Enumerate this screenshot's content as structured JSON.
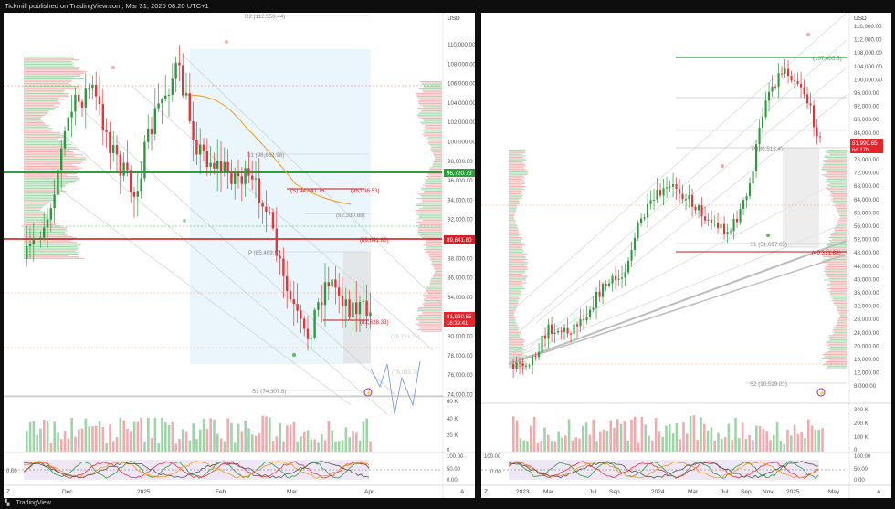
{
  "header": {
    "attribution": "Tickmill published on TradingView.com, Mar 31, 2025 08:20 UTC+1"
  },
  "footer": {
    "brand": "TradingView"
  },
  "colors": {
    "up": "#2e9a3e",
    "down": "#e8333a",
    "volume_up": "#9fd3a8",
    "volume_down": "#f4a9ae",
    "profile_up": "#a8dbb0",
    "profile_down": "#f6b3b6",
    "line_green": "#2f9e3f",
    "line_red": "#d42027",
    "fib": "#b0b0b0",
    "ma": "#f29b1d",
    "price_tag": "#e8232a",
    "green_tag": "#2f9e3f"
  },
  "left": {
    "currency": "USD",
    "price_axis": [
      "110,000.00",
      "108,000.00",
      "106,000.00",
      "104,000.00",
      "102,000.00",
      "100,000.00",
      "98,000.00",
      "96,000.00",
      "94,000.00",
      "92,000.00",
      "90,000.00",
      "88,000.00",
      "86,000.00",
      "84,000.00",
      "82,000.00",
      "80,000.00",
      "78,000.00",
      "76,000.00",
      "74,000.00"
    ],
    "time_axis": [
      "Dec",
      "2025",
      "Feb",
      "Mar",
      "Apr"
    ],
    "tag_green": "96,720.73",
    "tag_red_level": "89,641.80",
    "tag_price": "81,990.65",
    "tag_countdown": "16:39:41",
    "pivot_labels": {
      "r2": "R2 (112,556.44)",
      "r1": "R1 (98,633.98)",
      "p": "P (85,469.9)",
      "s1": "S1 (74,307.6)",
      "lvl_9504": "(S) 94,541.75",
      "lvl_95036": "(95,036.53)",
      "lvl_92330": "(92,330.88)",
      "lvl_89641": "(89,641.80)",
      "lvl_81628": "(81,628.33)",
      "lvl_79723": "(79,723.25)",
      "lvl_76093": "(76,093.7)"
    },
    "volume_axis": [
      "60 K",
      "40 K",
      "20 K",
      "0"
    ],
    "osc_axis": [
      "100.00",
      "50.00",
      "0.00"
    ],
    "osc_left_value": "0.00",
    "axis_mode": "A",
    "zone_label": "Z"
  },
  "right": {
    "currency": "USD",
    "price_axis": [
      "116,000.00",
      "112,000.00",
      "108,000.00",
      "104,000.00",
      "100,000.00",
      "96,000.00",
      "92,000.00",
      "88,000.00",
      "84,000.00",
      "80,000.00",
      "76,000.00",
      "72,000.00",
      "68,000.00",
      "64,000.00",
      "60,000.00",
      "56,000.00",
      "52,000.00",
      "48,000.00",
      "44,000.00",
      "40,000.00",
      "36,000.00",
      "32,000.00",
      "28,000.00",
      "24,000.00",
      "20,000.00",
      "16,000.00",
      "12,000.00",
      "8,000.00"
    ],
    "time_axis": [
      "2023",
      "Mar",
      "Jul",
      "Sep",
      "2024",
      "Mar",
      "Jul",
      "Sep",
      "Nov",
      "2025",
      "May"
    ],
    "tag_price": "81,990.65",
    "tag_countdown": "6d 17h",
    "pivot_labels": {
      "top": "(107,805.5)",
      "p": "P (80,513.4)",
      "s1": "S1 (51,697.65)",
      "s2": "S2 (10,529.01)",
      "lvl_49331": "(49,331.88)"
    },
    "volume_axis": [
      "300 K",
      "200 K",
      "100 K",
      "0"
    ],
    "osc_axis": [
      "100.00",
      "50.00",
      "0.00"
    ],
    "osc_left_top": "100.00",
    "osc_left_value": "0.00",
    "axis_mode": "A",
    "zone_label": "Z"
  }
}
